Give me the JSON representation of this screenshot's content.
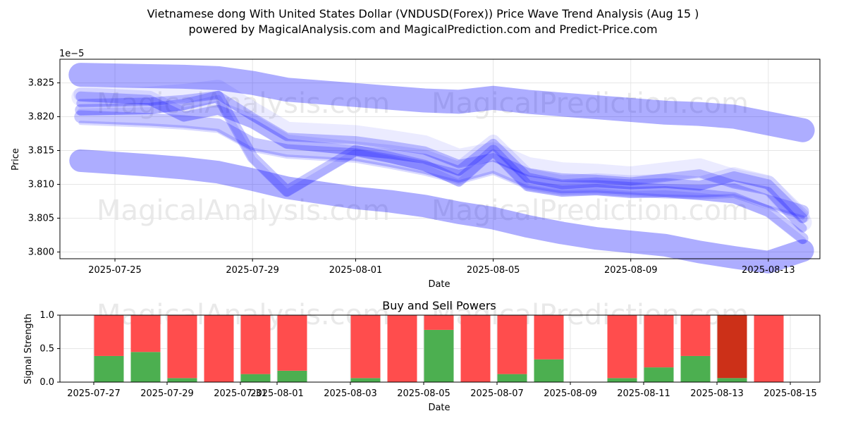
{
  "title_line1": "Vietnamese dong With United States Dollar (VNDUSD(Forex)) Price Wave Trend Analysis (Aug 15 )",
  "title_line2": "powered by MagicalAnalysis.com and MagicalPrediction.com and Predict-Price.com",
  "watermarks": [
    "MagicalAnalysis.com",
    "MagicalPrediction.com"
  ],
  "colors": {
    "band": "#0000ff",
    "buy": "#4caf50",
    "sell": "#ff4d4d",
    "sell_dark": "#cc3018",
    "watermark": "#d8d8d8"
  },
  "chart_data": [
    {
      "type": "line",
      "xlabel": "Date",
      "ylabel": "Price",
      "offset_label": "1e−5",
      "grid": true,
      "xlim": [
        "2025-07-24",
        "2025-08-14"
      ],
      "ylim": [
        3.799,
        3.8285
      ],
      "xticks": [
        "2025-07-25",
        "2025-07-29",
        "2025-08-01",
        "2025-08-05",
        "2025-08-09",
        "2025-08-13"
      ],
      "yticks": [
        3.8,
        3.805,
        3.81,
        3.815,
        3.82,
        3.825
      ],
      "ytick_labels": [
        "3.800",
        "3.805",
        "3.810",
        "3.815",
        "3.820",
        "3.825"
      ],
      "x": [
        "2025-07-24",
        "2025-07-26",
        "2025-07-27",
        "2025-07-28",
        "2025-07-29",
        "2025-07-30",
        "2025-08-01",
        "2025-08-02",
        "2025-08-03",
        "2025-08-04",
        "2025-08-05",
        "2025-08-06",
        "2025-08-07",
        "2025-08-08",
        "2025-08-09",
        "2025-08-10",
        "2025-08-11",
        "2025-08-12",
        "2025-08-13",
        "2025-08-14"
      ],
      "series": [
        {
          "values": [
            3.8262,
            3.826,
            3.8259,
            3.8257,
            3.825,
            3.824,
            3.8232,
            3.8228,
            3.8224,
            3.8222,
            3.8228,
            3.8222,
            3.8218,
            3.8214,
            3.821,
            3.8206,
            3.8204,
            3.82,
            3.819,
            3.818
          ]
        },
        {
          "values": [
            3.82,
            3.8196,
            3.8193,
            3.8188,
            3.816,
            3.815,
            3.8144,
            3.8135,
            3.8125,
            3.8112,
            3.8126,
            3.8104,
            3.8096,
            3.8097,
            3.8094,
            3.8091,
            3.809,
            3.8092,
            3.8075,
            3.806
          ]
        },
        {
          "values": [
            3.821,
            3.8212,
            3.8218,
            3.823,
            3.814,
            3.809,
            3.815,
            3.814,
            3.8128,
            3.8105,
            3.815,
            3.8098,
            3.809,
            3.8092,
            3.8088,
            3.8089,
            3.8085,
            3.808,
            3.806,
            3.802
          ]
        },
        {
          "values": [
            3.823,
            3.8225,
            3.82,
            3.821,
            3.819,
            3.816,
            3.815,
            3.8145,
            3.8138,
            3.812,
            3.816,
            3.811,
            3.81,
            3.8103,
            3.81,
            3.8102,
            3.8098,
            3.8112,
            3.81,
            3.805
          ]
        },
        {
          "values": [
            3.822,
            3.8222,
            3.8226,
            3.8232,
            3.82,
            3.817,
            3.8165,
            3.8158,
            3.815,
            3.813,
            3.814,
            3.8118,
            3.811,
            3.8108,
            3.8104,
            3.811,
            3.8116,
            3.81,
            3.809,
            3.8035
          ]
        },
        {
          "values": [
            3.8135,
            3.8128,
            3.8124,
            3.8118,
            3.8107,
            3.8095,
            3.808,
            3.8075,
            3.8068,
            3.8058,
            3.805,
            3.8038,
            3.8028,
            3.802,
            3.8015,
            3.801,
            3.8,
            3.7992,
            3.7985,
            3.8002
          ]
        }
      ]
    },
    {
      "type": "bar",
      "title": "Buy and Sell Powers",
      "xlabel": "Date",
      "ylabel": "Signal Strength",
      "ylim": [
        0,
        1
      ],
      "yticks": [
        "0.0",
        "0.5",
        "1.0"
      ],
      "xticks": [
        "2025-07-27",
        "2025-07-29",
        "2025-07-31",
        "2025-08-01",
        "2025-08-03",
        "2025-08-05",
        "2025-08-07",
        "2025-08-09",
        "2025-08-11",
        "2025-08-13",
        "2025-08-15"
      ],
      "categories": [
        "2025-07-27",
        "2025-07-28",
        "2025-07-29",
        "2025-07-30",
        "2025-07-31",
        "2025-08-01",
        "2025-08-03",
        "2025-08-04",
        "2025-08-05",
        "2025-08-06",
        "2025-08-07",
        "2025-08-08",
        "2025-08-10",
        "2025-08-11",
        "2025-08-12",
        "2025-08-13",
        "2025-08-14"
      ],
      "buy": [
        0.39,
        0.45,
        0.06,
        0.0,
        0.12,
        0.17,
        0.06,
        0.0,
        0.78,
        0.0,
        0.12,
        0.34,
        0.06,
        0.22,
        0.39,
        0.06,
        0.0
      ],
      "sell": [
        0.61,
        0.55,
        0.94,
        1.0,
        0.88,
        0.83,
        0.94,
        1.0,
        0.22,
        1.0,
        0.88,
        0.66,
        0.94,
        0.78,
        0.61,
        0.94,
        1.0
      ],
      "highlight": "2025-08-13"
    }
  ]
}
